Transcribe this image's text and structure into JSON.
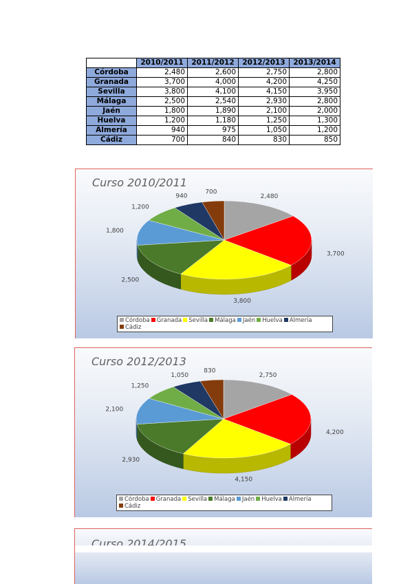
{
  "table": {
    "columns": [
      "2010/2011",
      "2011/2012",
      "2012/2013",
      "2013/2014"
    ],
    "rows": [
      {
        "name": "Córdoba",
        "values": [
          "2,480",
          "2,600",
          "2,750",
          "2,800"
        ]
      },
      {
        "name": "Granada",
        "values": [
          "3,700",
          "4,000",
          "4,200",
          "4,250"
        ]
      },
      {
        "name": "Sevilla",
        "values": [
          "3,800",
          "4,100",
          "4,150",
          "3,950"
        ]
      },
      {
        "name": "Málaga",
        "values": [
          "2,500",
          "2,540",
          "2,930",
          "2,800"
        ]
      },
      {
        "name": "Jaén",
        "values": [
          "1,800",
          "1,890",
          "2,100",
          "2,000"
        ]
      },
      {
        "name": "Huelva",
        "values": [
          "1,200",
          "1,180",
          "1,250",
          "1,300"
        ]
      },
      {
        "name": "Almería",
        "values": [
          "940",
          "975",
          "1,050",
          "1,200"
        ]
      },
      {
        "name": "Cádiz",
        "values": [
          "700",
          "840",
          "830",
          "850"
        ]
      }
    ]
  },
  "colors": [
    "#a5a5a5",
    "#ff0000",
    "#ffff00",
    "#4a7a2a",
    "#5b9bd5",
    "#70ad47",
    "#1f3864",
    "#843c0c"
  ],
  "chart_data": [
    {
      "type": "pie",
      "title": "Curso 2010/2011",
      "categories": [
        "Córdoba",
        "Granada",
        "Sevilla",
        "Málaga",
        "Jaén",
        "Huelva",
        "Almería",
        "Cádiz"
      ],
      "values": [
        2480,
        3700,
        3800,
        2500,
        1800,
        1200,
        940,
        700
      ],
      "labels": [
        "2,480",
        "3,700",
        "3,800",
        "2,500",
        "1,800",
        "1,200",
        "940",
        "700"
      ],
      "legend": "bottom"
    },
    {
      "type": "pie",
      "title": "Curso 2012/2013",
      "categories": [
        "Córdoba",
        "Granada",
        "Sevilla",
        "Málaga",
        "Jaén",
        "Huelva",
        "Almería",
        "Cádiz"
      ],
      "values": [
        2750,
        4200,
        4150,
        2930,
        2100,
        1250,
        1050,
        830
      ],
      "labels": [
        "2,750",
        "4,200",
        "4,150",
        "2,930",
        "2,100",
        "1,250",
        "1,050",
        "830"
      ],
      "legend": "bottom"
    },
    {
      "type": "pie",
      "title": "Curso 2014/2015"
    }
  ]
}
